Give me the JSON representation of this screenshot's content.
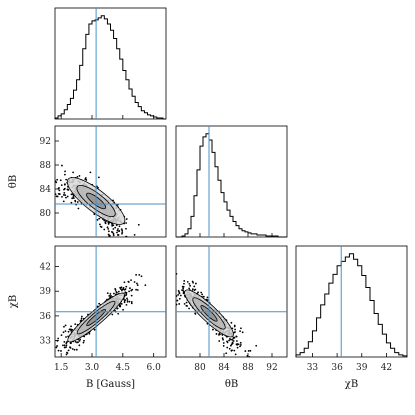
{
  "chart_data": {
    "type": "corner",
    "truths": {
      "B": 3.2,
      "theta_B": 81.5,
      "chi_B": 36.5
    },
    "colors": {
      "hist": "#000000",
      "truth": "#4a90c8",
      "scatter": "#000000",
      "frame": "#000000"
    },
    "parameters": [
      {
        "key": "B",
        "label": "B [Gauss]",
        "range": [
          1.2,
          6.6
        ],
        "ticks": [
          "1.5",
          "3.0",
          "4.5",
          "6.0"
        ],
        "tick_values": [
          1.5,
          3.0,
          4.5,
          6.0
        ]
      },
      {
        "key": "theta_B",
        "label": "θB",
        "range": [
          76.0,
          94.5
        ],
        "ticks": [
          "80",
          "84",
          "88",
          "92"
        ],
        "tick_values": [
          80,
          84,
          88,
          92
        ]
      },
      {
        "key": "chi_B",
        "label": "χB",
        "range": [
          31.0,
          44.5
        ],
        "ticks": [
          "33",
          "36",
          "39",
          "42"
        ],
        "tick_values": [
          33,
          36,
          39,
          42
        ]
      }
    ],
    "histograms": [
      {
        "parameter": "B",
        "bin_edges": [
          1.2,
          1.35,
          1.5,
          1.65,
          1.8,
          1.95,
          2.1,
          2.25,
          2.4,
          2.55,
          2.7,
          2.85,
          3.0,
          3.15,
          3.3,
          3.45,
          3.6,
          3.75,
          3.9,
          4.05,
          4.2,
          4.35,
          4.5,
          4.65,
          4.8,
          4.95,
          5.1,
          5.25,
          5.4,
          5.55,
          5.7,
          5.85,
          6.0,
          6.15,
          6.3,
          6.45,
          6.6
        ],
        "counts": [
          1,
          3,
          5,
          9,
          14,
          20,
          28,
          38,
          52,
          68,
          82,
          92,
          95,
          96,
          98,
          100,
          97,
          92,
          86,
          78,
          68,
          58,
          47,
          38,
          29,
          22,
          16,
          12,
          8,
          6,
          4,
          3,
          2,
          1,
          1,
          0
        ]
      },
      {
        "parameter": "theta_B",
        "bin_edges": [
          76.0,
          76.5,
          77.0,
          77.5,
          78.0,
          78.5,
          79.0,
          79.5,
          80.0,
          80.5,
          81.0,
          81.5,
          82.0,
          82.5,
          83.0,
          83.5,
          84.0,
          84.5,
          85.0,
          85.5,
          86.0,
          86.5,
          87.0,
          87.5,
          88.0,
          88.5,
          89.0,
          89.5,
          90.0,
          90.5,
          91.0,
          91.5,
          92.0,
          92.5,
          93.0,
          93.5,
          94.0,
          94.5
        ],
        "counts": [
          0,
          0,
          1,
          3,
          8,
          20,
          40,
          65,
          88,
          97,
          100,
          94,
          82,
          68,
          55,
          43,
          34,
          26,
          20,
          15,
          11,
          8,
          6,
          5,
          4,
          3,
          3,
          2,
          2,
          2,
          1,
          1,
          1,
          1,
          0,
          0,
          0
        ]
      },
      {
        "parameter": "chi_B",
        "bin_edges": [
          31.0,
          31.5,
          32.0,
          32.5,
          33.0,
          33.5,
          34.0,
          34.5,
          35.0,
          35.5,
          36.0,
          36.5,
          37.0,
          37.5,
          38.0,
          38.5,
          39.0,
          39.5,
          40.0,
          40.5,
          41.0,
          41.5,
          42.0,
          42.5,
          43.0,
          43.5,
          44.0,
          44.5
        ],
        "counts": [
          2,
          4,
          8,
          14,
          24,
          36,
          48,
          58,
          68,
          76,
          84,
          88,
          92,
          95,
          90,
          84,
          75,
          64,
          52,
          40,
          30,
          21,
          13,
          8,
          4,
          2,
          1
        ]
      }
    ],
    "pairs": [
      {
        "x": "B",
        "y": "theta_B",
        "center": [
          3.2,
          82.0
        ],
        "direction": [
          1.5,
          -4.0
        ],
        "spread": [
          0.55,
          1.1
        ],
        "curvature": 0.22,
        "n_points": 650
      },
      {
        "x": "B",
        "y": "chi_B",
        "center": [
          3.2,
          35.8
        ],
        "direction": [
          1.5,
          3.2
        ],
        "spread": [
          0.55,
          0.7
        ],
        "curvature": 0.0,
        "n_points": 650
      },
      {
        "x": "theta_B",
        "y": "chi_B",
        "center": [
          81.5,
          36.3
        ],
        "direction": [
          4.0,
          -2.8
        ],
        "spread": [
          0.6,
          0.8
        ],
        "curvature": 0.05,
        "n_points": 650
      }
    ],
    "contour_levels": [
      1.0,
      2.0,
      3.0
    ]
  }
}
